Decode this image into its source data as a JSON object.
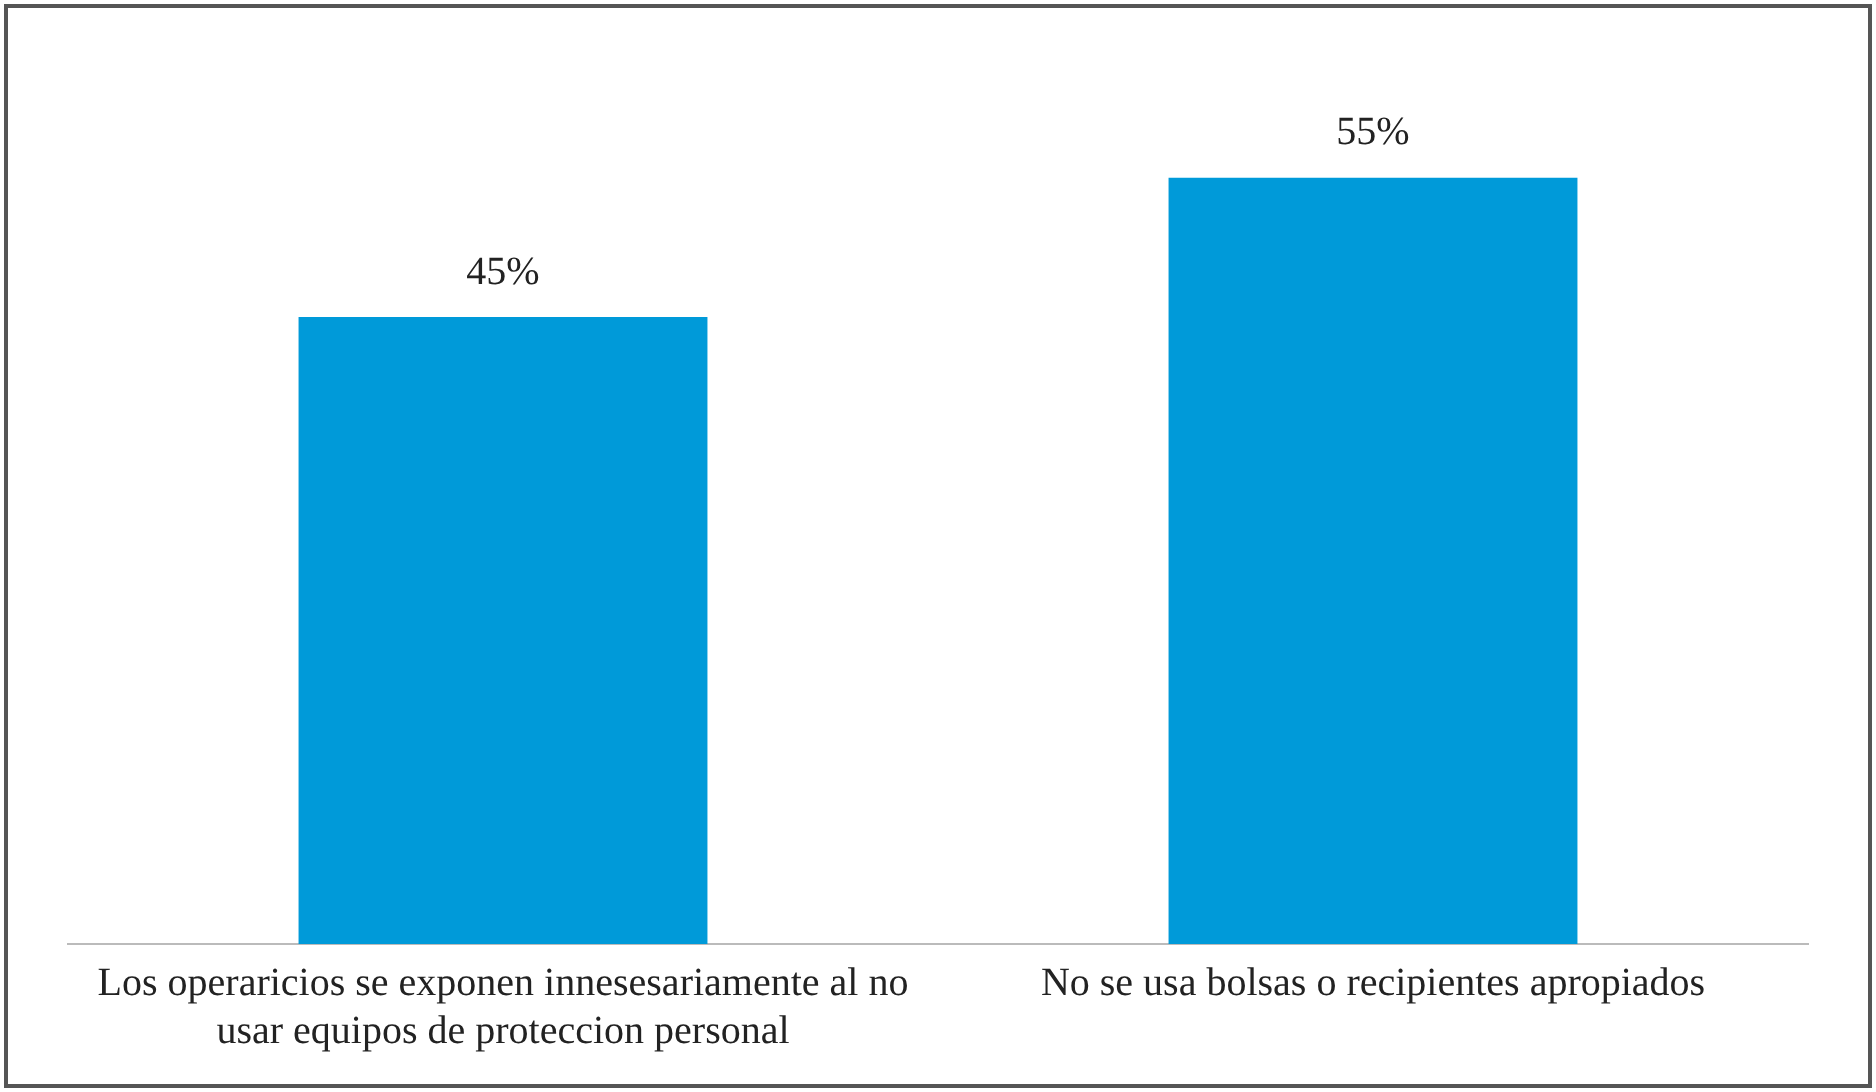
{
  "chart_data": {
    "type": "bar",
    "categories": [
      "Los operaricios se exponen innesesariamente al no usar equipos de proteccion personal",
      "No se usa bolsas o recipientes apropiados"
    ],
    "values": [
      45,
      55
    ],
    "color": "#009ad9",
    "value_labels": [
      "45%",
      "55%"
    ],
    "grid": false,
    "legend": false
  }
}
